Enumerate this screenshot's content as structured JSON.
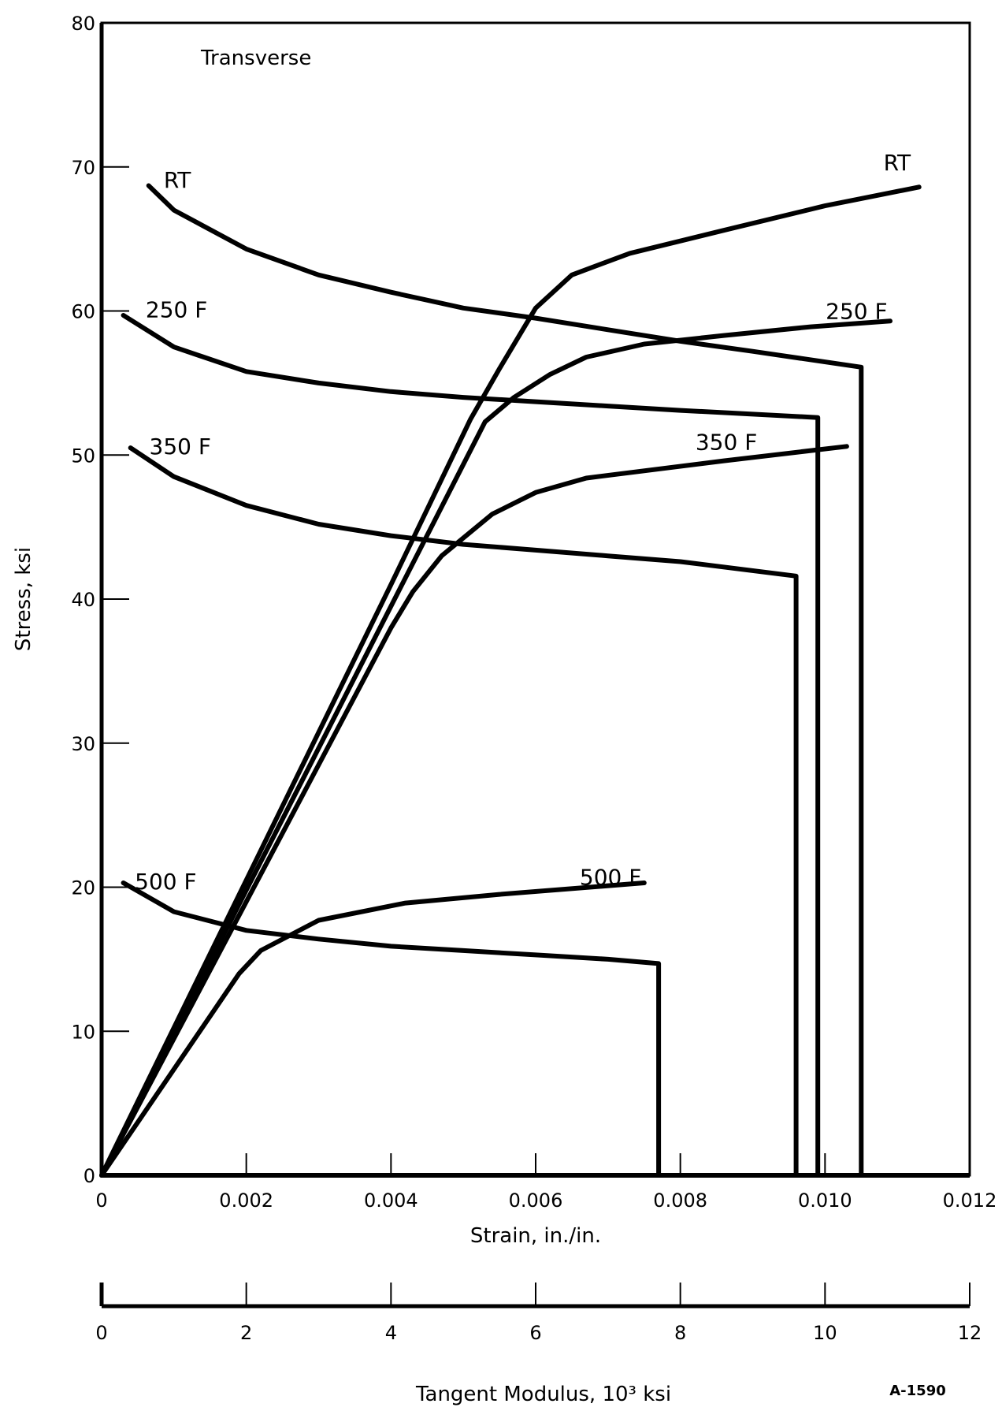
{
  "chart_data": {
    "type": "line",
    "title": "Transverse",
    "xlabel": "Strain, in./in.",
    "ylabel": "Stress, ksi",
    "secondary_xlabel": "Tangent Modulus, 10³ ksi",
    "figure_id": "A-1590",
    "xlim": [
      0,
      0.012
    ],
    "ylim": [
      0,
      80
    ],
    "secondary_xlim": [
      0,
      12
    ],
    "x_ticks": [
      "0",
      "0.002",
      "0.004",
      "0.006",
      "0.008",
      "0.010",
      "0.012"
    ],
    "x_tick_values": [
      0,
      0.002,
      0.004,
      0.006,
      0.008,
      0.01,
      0.012
    ],
    "y_ticks": [
      "0",
      "10",
      "20",
      "30",
      "40",
      "50",
      "60",
      "70",
      "80"
    ],
    "y_tick_values": [
      0,
      10,
      20,
      30,
      40,
      50,
      60,
      70,
      80
    ],
    "secondary_x_ticks": [
      "0",
      "2",
      "4",
      "6",
      "8",
      "10",
      "12"
    ],
    "secondary_x_tick_values": [
      0,
      2,
      4,
      6,
      8,
      10,
      12
    ],
    "grid": false,
    "stress_strain_series": [
      {
        "name": "RT",
        "points": [
          [
            0,
            0
          ],
          [
            0.002,
            20.5
          ],
          [
            0.004,
            41
          ],
          [
            0.0051,
            52.5
          ],
          [
            0.0055,
            56
          ],
          [
            0.006,
            60.2
          ],
          [
            0.0065,
            62.5
          ],
          [
            0.0073,
            64
          ],
          [
            0.0086,
            65.6
          ],
          [
            0.01,
            67.3
          ],
          [
            0.0113,
            68.6
          ]
        ]
      },
      {
        "name": "250 F",
        "points": [
          [
            0,
            0
          ],
          [
            0.002,
            19.8
          ],
          [
            0.004,
            39.5
          ],
          [
            0.0053,
            52.3
          ],
          [
            0.0057,
            54
          ],
          [
            0.0062,
            55.6
          ],
          [
            0.0067,
            56.8
          ],
          [
            0.0075,
            57.7
          ],
          [
            0.0086,
            58.3
          ],
          [
            0.0098,
            58.9
          ],
          [
            0.0109,
            59.3
          ]
        ]
      },
      {
        "name": "350 F",
        "points": [
          [
            0,
            0
          ],
          [
            0.002,
            19
          ],
          [
            0.004,
            38
          ],
          [
            0.0043,
            40.5
          ],
          [
            0.0047,
            43
          ],
          [
            0.0054,
            45.9
          ],
          [
            0.006,
            47.4
          ],
          [
            0.0067,
            48.4
          ],
          [
            0.0086,
            49.6
          ],
          [
            0.0103,
            50.6
          ]
        ]
      },
      {
        "name": "500 F",
        "points": [
          [
            0,
            0
          ],
          [
            0.0019,
            14
          ],
          [
            0.0022,
            15.6
          ],
          [
            0.003,
            17.7
          ],
          [
            0.0042,
            18.9
          ],
          [
            0.0055,
            19.5
          ],
          [
            0.0075,
            20.3
          ]
        ]
      }
    ],
    "tangent_modulus_series": [
      {
        "name": "RT",
        "points": [
          [
            0.65,
            68.7
          ],
          [
            1,
            67
          ],
          [
            2,
            64.3
          ],
          [
            3,
            62.5
          ],
          [
            4,
            61.3
          ],
          [
            5,
            60.2
          ],
          [
            6,
            59.5
          ],
          [
            7,
            58.7
          ],
          [
            8,
            57.9
          ],
          [
            9,
            57.2
          ],
          [
            10.5,
            56.1
          ],
          [
            10.5,
            0
          ]
        ]
      },
      {
        "name": "250 F",
        "points": [
          [
            0.3,
            59.7
          ],
          [
            1,
            57.5
          ],
          [
            2,
            55.8
          ],
          [
            3,
            55
          ],
          [
            4,
            54.4
          ],
          [
            5,
            54
          ],
          [
            6,
            53.7
          ],
          [
            7,
            53.4
          ],
          [
            8,
            53.1
          ],
          [
            9.9,
            52.6
          ],
          [
            9.9,
            0
          ]
        ]
      },
      {
        "name": "350 F",
        "points": [
          [
            0.4,
            50.5
          ],
          [
            1,
            48.5
          ],
          [
            2,
            46.5
          ],
          [
            3,
            45.2
          ],
          [
            4,
            44.4
          ],
          [
            5,
            43.8
          ],
          [
            6,
            43.4
          ],
          [
            7,
            43
          ],
          [
            8,
            42.6
          ],
          [
            9.6,
            41.6
          ],
          [
            9.6,
            0
          ]
        ]
      },
      {
        "name": "500 F",
        "points": [
          [
            0.3,
            20.3
          ],
          [
            1,
            18.3
          ],
          [
            2,
            17
          ],
          [
            3,
            16.4
          ],
          [
            4,
            15.9
          ],
          [
            5,
            15.6
          ],
          [
            6,
            15.3
          ],
          [
            7,
            15
          ],
          [
            7.7,
            14.7
          ],
          [
            7.7,
            0
          ]
        ]
      }
    ],
    "curve_labels": [
      {
        "text": "RT",
        "curve": "tangent_modulus",
        "at": [
          0.75,
          69
        ]
      },
      {
        "text": "250 F",
        "curve": "tangent_modulus",
        "at": [
          0.5,
          60
        ]
      },
      {
        "text": "350 F",
        "curve": "tangent_modulus",
        "at": [
          0.55,
          50.5
        ]
      },
      {
        "text": "500 F",
        "curve": "tangent_modulus",
        "at": [
          0.35,
          20.3
        ]
      },
      {
        "text": "RT",
        "curve": "stress_strain",
        "at": [
          0.0107,
          70.2
        ]
      },
      {
        "text": "250 F",
        "curve": "stress_strain",
        "at": [
          0.0099,
          59.9
        ]
      },
      {
        "text": "350 F",
        "curve": "stress_strain",
        "at": [
          0.0081,
          50.8
        ]
      },
      {
        "text": "500 F",
        "curve": "stress_strain",
        "at": [
          0.0065,
          20.6
        ]
      }
    ]
  }
}
